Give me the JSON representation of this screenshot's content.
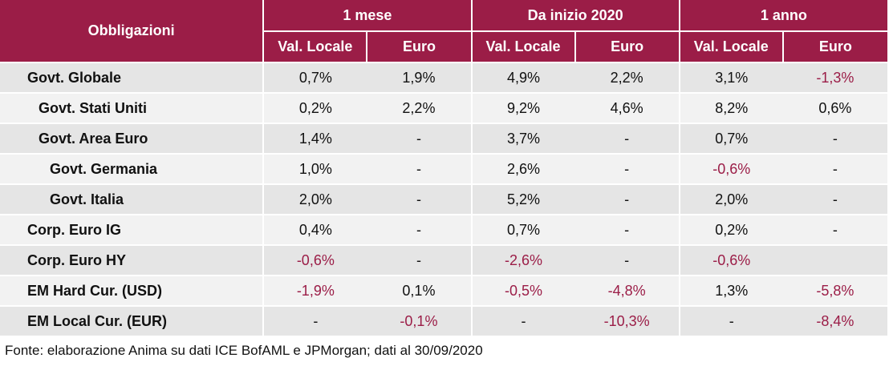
{
  "table": {
    "row_header": "Obbligazioni",
    "groups": [
      "1 mese",
      "Da inizio 2020",
      "1 anno"
    ],
    "subheaders": [
      "Val. Locale",
      "Euro",
      "Val. Locale",
      "Euro",
      "Val. Locale",
      "Euro"
    ],
    "colors": {
      "header_bg": "#9b1d47",
      "negative_text": "#9b1d47",
      "row_dark": "#e5e5e5",
      "row_light": "#f2f2f2"
    },
    "rows": [
      {
        "label": "Govt. Globale",
        "level": 0,
        "cells": [
          "0,7%",
          "1,9%",
          "4,9%",
          "2,2%",
          "3,1%",
          "-1,3%"
        ]
      },
      {
        "label": "Govt. Stati Uniti",
        "level": 1,
        "cells": [
          "0,2%",
          "2,2%",
          "9,2%",
          "4,6%",
          "8,2%",
          "0,6%"
        ]
      },
      {
        "label": "Govt. Area Euro",
        "level": 1,
        "cells": [
          "1,4%",
          "-",
          "3,7%",
          "-",
          "0,7%",
          "-"
        ]
      },
      {
        "label": "Govt. Germania",
        "level": 2,
        "cells": [
          "1,0%",
          "-",
          "2,6%",
          "-",
          "-0,6%",
          "-"
        ]
      },
      {
        "label": "Govt. Italia",
        "level": 2,
        "cells": [
          "2,0%",
          "-",
          "5,2%",
          "-",
          "2,0%",
          "-"
        ]
      },
      {
        "label": "Corp. Euro IG",
        "level": 0,
        "cells": [
          "0,4%",
          "-",
          "0,7%",
          "-",
          "0,2%",
          "-"
        ]
      },
      {
        "label": "Corp. Euro HY",
        "level": 0,
        "cells": [
          "-0,6%",
          "-",
          "-2,6%",
          "-",
          "-0,6%",
          ""
        ]
      },
      {
        "label": "EM Hard Cur. (USD)",
        "level": 0,
        "cells": [
          "-1,9%",
          "0,1%",
          "-0,5%",
          "-4,8%",
          "1,3%",
          "-5,8%"
        ]
      },
      {
        "label": "EM Local Cur. (EUR)",
        "level": 0,
        "cells": [
          "-",
          "-0,1%",
          "-",
          "-10,3%",
          "-",
          "-8,4%"
        ]
      }
    ]
  },
  "source": "Fonte: elaborazione Anima su dati ICE BofAML e JPMorgan; dati al 30/09/2020"
}
